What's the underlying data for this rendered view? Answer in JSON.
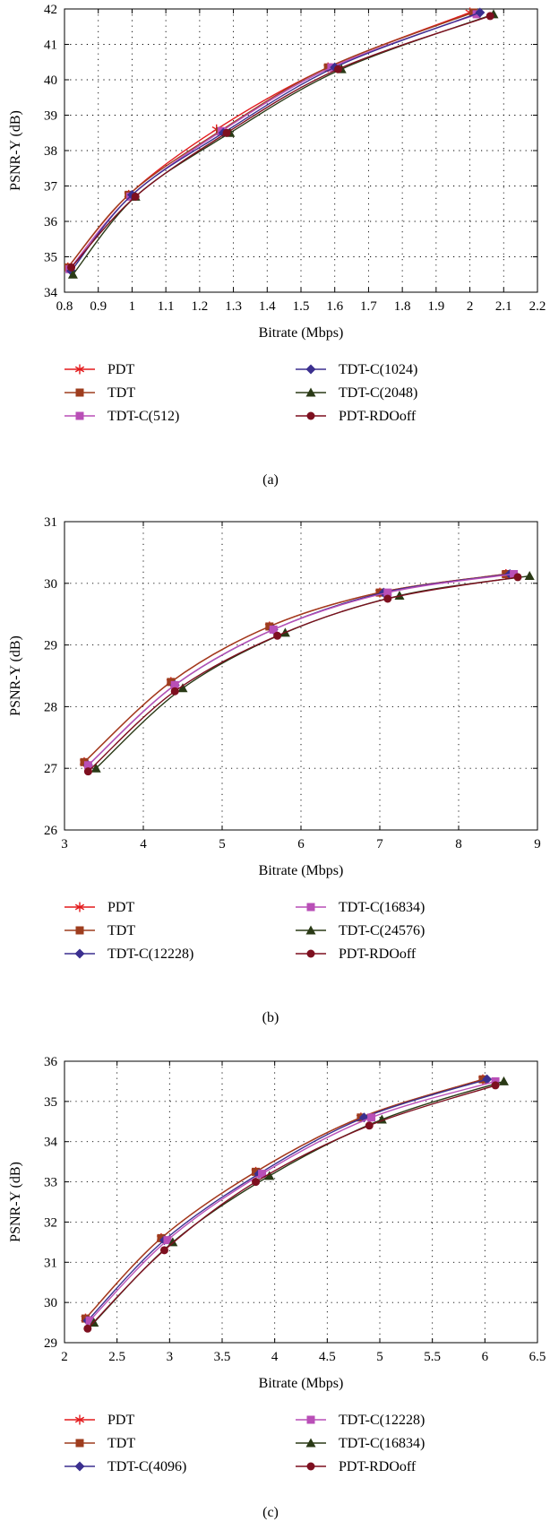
{
  "figure": {
    "colors": {
      "PDT": "#e31a1c",
      "TDT": "#9e3d1e",
      "TDT-C-mid": "#3b2f8f",
      "TDT-C-magenta": "#b94fb7",
      "TDT-C-green": "#2a3a16",
      "PDT-RDOoff": "#7d0f1f"
    }
  },
  "chart_data": [
    {
      "panel_label": "(a)",
      "type": "line",
      "xlabel": "Bitrate (Mbps)",
      "ylabel": "PSNR-Y (dB)",
      "xlim": [
        0.8,
        2.2
      ],
      "ylim": [
        34,
        42
      ],
      "xticks": [
        "0.8",
        "0.9",
        "1",
        "1.1",
        "1.2",
        "1.3",
        "1.4",
        "1.5",
        "1.6",
        "1.7",
        "1.8",
        "1.9",
        "2",
        "2.1",
        "2.2"
      ],
      "yticks": [
        "34",
        "35",
        "36",
        "37",
        "38",
        "39",
        "40",
        "41",
        "42"
      ],
      "grid": true,
      "legend_placement": "below",
      "series": [
        {
          "name": "PDT",
          "marker": "star",
          "color": "#e31a1c",
          "x": [
            0.81,
            0.99,
            1.25,
            1.58,
            2.0
          ],
          "y": [
            34.7,
            36.75,
            38.6,
            40.35,
            41.9
          ]
        },
        {
          "name": "TDT",
          "marker": "square",
          "color": "#9e3d1e",
          "x": [
            0.81,
            0.99,
            1.26,
            1.58,
            2.01
          ],
          "y": [
            34.7,
            36.75,
            38.55,
            40.35,
            41.9
          ]
        },
        {
          "name": "TDT-C(512)",
          "marker": "square",
          "color": "#b94fb7",
          "x": [
            0.815,
            0.995,
            1.265,
            1.59,
            2.02
          ],
          "y": [
            34.65,
            36.7,
            38.55,
            40.35,
            41.85
          ]
        },
        {
          "name": "TDT-C(1024)",
          "marker": "diamond",
          "color": "#3b2f8f",
          "x": [
            0.82,
            1.0,
            1.27,
            1.6,
            2.03
          ],
          "y": [
            34.6,
            36.75,
            38.5,
            40.35,
            41.9
          ]
        },
        {
          "name": "TDT-C(2048)",
          "marker": "triangle",
          "color": "#2a3a16",
          "x": [
            0.825,
            1.01,
            1.29,
            1.62,
            2.07
          ],
          "y": [
            34.5,
            36.7,
            38.5,
            40.3,
            41.85
          ]
        },
        {
          "name": "PDT-RDOoff",
          "marker": "circle",
          "color": "#7d0f1f",
          "x": [
            0.82,
            1.01,
            1.28,
            1.61,
            2.06
          ],
          "y": [
            34.7,
            36.7,
            38.5,
            40.3,
            41.8
          ]
        }
      ]
    },
    {
      "panel_label": "(b)",
      "type": "line",
      "xlabel": "Bitrate (Mbps)",
      "ylabel": "PSNR-Y (dB)",
      "xlim": [
        3,
        9
      ],
      "ylim": [
        26,
        31
      ],
      "xticks": [
        "3",
        "4",
        "5",
        "6",
        "7",
        "8",
        "9"
      ],
      "yticks": [
        "26",
        "27",
        "28",
        "29",
        "30",
        "31"
      ],
      "grid": true,
      "legend_placement": "below",
      "series": [
        {
          "name": "PDT",
          "marker": "star",
          "color": "#e31a1c",
          "x": [
            3.25,
            4.35,
            5.6,
            7.0,
            8.6
          ],
          "y": [
            27.1,
            28.4,
            29.3,
            29.85,
            30.15
          ]
        },
        {
          "name": "TDT",
          "marker": "square",
          "color": "#9e3d1e",
          "x": [
            3.25,
            4.35,
            5.6,
            7.0,
            8.6
          ],
          "y": [
            27.1,
            28.4,
            29.3,
            29.85,
            30.15
          ]
        },
        {
          "name": "TDT-C(12228)",
          "marker": "diamond",
          "color": "#3b2f8f",
          "x": [
            3.3,
            4.4,
            5.65,
            7.05,
            8.65
          ],
          "y": [
            27.05,
            28.35,
            29.25,
            29.85,
            30.15
          ]
        },
        {
          "name": "TDT-C(16834)",
          "marker": "square",
          "color": "#b94fb7",
          "x": [
            3.3,
            4.4,
            5.65,
            7.1,
            8.7
          ],
          "y": [
            27.05,
            28.35,
            29.25,
            29.85,
            30.15
          ]
        },
        {
          "name": "TDT-C(24576)",
          "marker": "triangle",
          "color": "#2a3a16",
          "x": [
            3.4,
            4.5,
            5.8,
            7.25,
            8.9
          ],
          "y": [
            27.0,
            28.3,
            29.2,
            29.8,
            30.12
          ]
        },
        {
          "name": "PDT-RDOoff",
          "marker": "circle",
          "color": "#7d0f1f",
          "x": [
            3.3,
            4.4,
            5.7,
            7.1,
            8.75
          ],
          "y": [
            26.95,
            28.25,
            29.15,
            29.75,
            30.1
          ]
        }
      ]
    },
    {
      "panel_label": "(c)",
      "type": "line",
      "xlabel": "Bitrate (Mbps)",
      "ylabel": "PSNR-Y (dB)",
      "xlim": [
        2,
        6.5
      ],
      "ylim": [
        29,
        36
      ],
      "xticks": [
        "2",
        "2.5",
        "3",
        "3.5",
        "4",
        "4.5",
        "5",
        "5.5",
        "6",
        "6.5"
      ],
      "yticks": [
        "29",
        "30",
        "31",
        "32",
        "33",
        "34",
        "35",
        "36"
      ],
      "grid": true,
      "legend_placement": "below",
      "series": [
        {
          "name": "PDT",
          "marker": "star",
          "color": "#e31a1c",
          "x": [
            2.2,
            2.92,
            3.82,
            4.82,
            5.98
          ],
          "y": [
            29.6,
            31.6,
            33.25,
            34.6,
            35.55
          ]
        },
        {
          "name": "TDT",
          "marker": "square",
          "color": "#9e3d1e",
          "x": [
            2.2,
            2.92,
            3.82,
            4.82,
            5.98
          ],
          "y": [
            29.6,
            31.6,
            33.25,
            34.6,
            35.55
          ]
        },
        {
          "name": "TDT-C(4096)",
          "marker": "diamond",
          "color": "#3b2f8f",
          "x": [
            2.22,
            2.95,
            3.85,
            4.85,
            6.02
          ],
          "y": [
            29.55,
            31.55,
            33.2,
            34.6,
            35.55
          ]
        },
        {
          "name": "TDT-C(12228)",
          "marker": "square",
          "color": "#b94fb7",
          "x": [
            2.24,
            2.98,
            3.88,
            4.92,
            6.1
          ],
          "y": [
            29.55,
            31.55,
            33.2,
            34.6,
            35.5
          ]
        },
        {
          "name": "TDT-C(16834)",
          "marker": "triangle",
          "color": "#2a3a16",
          "x": [
            2.28,
            3.03,
            3.95,
            5.02,
            6.18
          ],
          "y": [
            29.5,
            31.5,
            33.15,
            34.55,
            35.5
          ]
        },
        {
          "name": "PDT-RDOoff",
          "marker": "circle",
          "color": "#7d0f1f",
          "x": [
            2.22,
            2.95,
            3.82,
            4.9,
            6.1
          ],
          "y": [
            29.35,
            31.3,
            33.0,
            34.4,
            35.4
          ]
        }
      ]
    }
  ]
}
